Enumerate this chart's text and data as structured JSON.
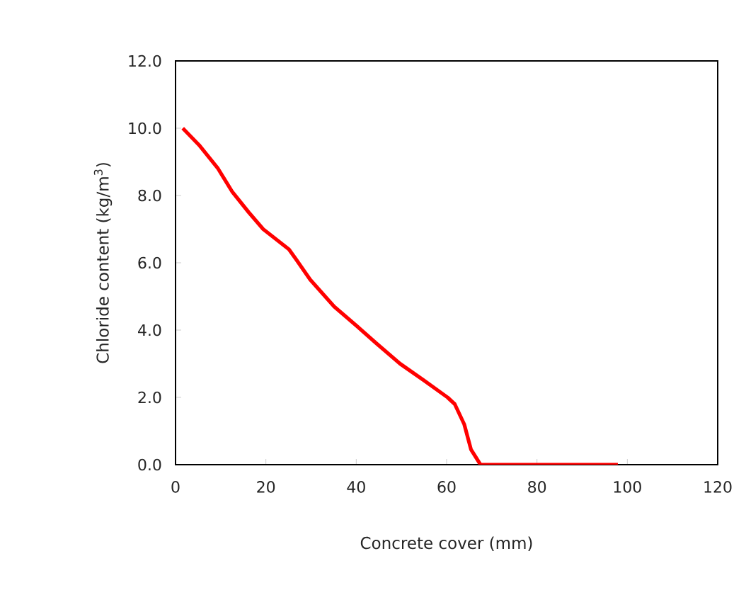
{
  "chart_data": {
    "type": "line",
    "xlabel": "Concrete cover (mm)",
    "ylabel": "Chloride content (kg/m$^{3}$)",
    "xlim": [
      0,
      120
    ],
    "xticks": [
      0,
      20,
      40,
      60,
      80,
      100,
      120
    ],
    "ylim": [
      0,
      12
    ],
    "yticks": [
      {
        "value": 0,
        "label": "0.0"
      },
      {
        "value": 2,
        "label": "2.0"
      },
      {
        "value": 4,
        "label": "4.0"
      },
      {
        "value": 6,
        "label": "6.0"
      },
      {
        "value": 8,
        "label": "8.0"
      },
      {
        "value": 10,
        "label": "10.0"
      },
      {
        "value": 12,
        "label": "12.0"
      }
    ],
    "marker": "none",
    "line_style": "solid",
    "series": [
      {
        "color": "#ff0000",
        "x": [
          1.6,
          5.2,
          9.4,
          12.6,
          16.2,
          19.4,
          25.1,
          26.7,
          29.8,
          35.1,
          40.3,
          44.5,
          49.7,
          55.0,
          60.2,
          61.8,
          63.9,
          65.4,
          67.5,
          71.7,
          97.9
        ],
        "values": [
          10.0,
          9.5,
          8.8,
          8.1,
          7.5,
          7.0,
          6.4,
          6.1,
          5.5,
          4.7,
          4.1,
          3.6,
          3.0,
          2.5,
          2.0,
          1.8,
          1.2,
          0.45,
          0,
          0,
          0
        ]
      }
    ]
  }
}
